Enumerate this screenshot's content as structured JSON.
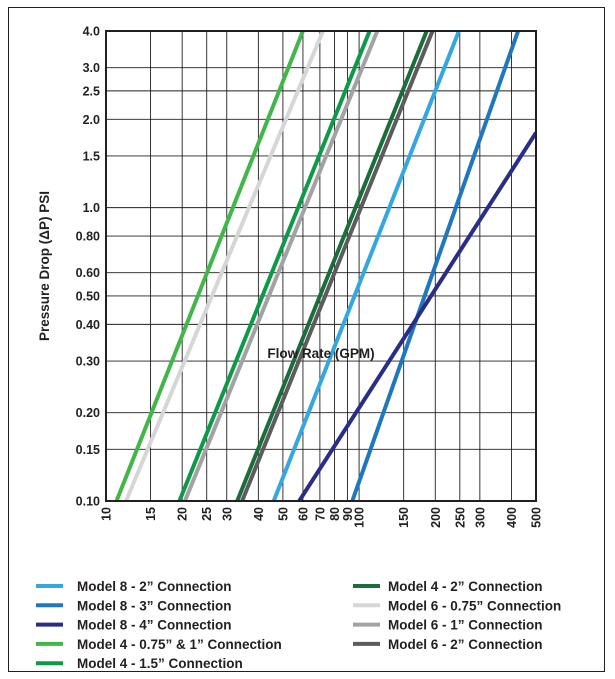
{
  "chart_data": {
    "type": "line",
    "xlabel": "Flow Rate (GPM)",
    "ylabel": "Pressure Drop (ΔP) PSI",
    "x_scale": "log",
    "y_scale": "log",
    "xlim": [
      10,
      500
    ],
    "ylim": [
      0.1,
      4.0
    ],
    "x_ticks": [
      10,
      15,
      20,
      25,
      30,
      40,
      50,
      60,
      70,
      80,
      90,
      100,
      150,
      200,
      250,
      300,
      400,
      500
    ],
    "x_tick_labels": [
      "10",
      "15",
      "20",
      "25",
      "30",
      "40",
      "50",
      "60",
      "70",
      "80",
      "90",
      "100",
      "150",
      "200",
      "250",
      "300",
      "400",
      "500"
    ],
    "y_ticks": [
      0.1,
      0.15,
      0.2,
      0.3,
      0.4,
      0.5,
      0.6,
      0.8,
      1.0,
      1.5,
      2.0,
      2.5,
      3.0,
      4.0
    ],
    "y_tick_labels": [
      "0.10",
      "0.15",
      "0.20",
      "0.30",
      "0.40",
      "0.50",
      "0.60",
      "0.80",
      "1.0",
      "1.5",
      "2.0",
      "2.5",
      "3.0",
      "4.0"
    ],
    "grid": true,
    "legend_position": "bottom",
    "series": [
      {
        "name": "Model 8 - 2” Connection",
        "color": "#35a7e0",
        "x": [
          46,
          248
        ],
        "y": [
          0.1,
          4.0
        ]
      },
      {
        "name": "Model 8 - 3” Connection",
        "color": "#1f78be",
        "x": [
          94,
          425
        ],
        "y": [
          0.1,
          4.0
        ]
      },
      {
        "name": "Model 8 - 4” Connection",
        "color": "#2a2d86",
        "x": [
          58,
          500
        ],
        "y": [
          0.1,
          1.8
        ]
      },
      {
        "name": "Model 4 - 0.75” & 1” Connection",
        "color": "#43b649",
        "x": [
          11,
          60
        ],
        "y": [
          0.1,
          4.0
        ]
      },
      {
        "name": "Model 4 - 1.5” Connection",
        "color": "#0d9a48",
        "x": [
          19.5,
          110
        ],
        "y": [
          0.1,
          4.0
        ]
      },
      {
        "name": "Model 4 - 2” Connection",
        "color": "#1b6e3c",
        "x": [
          33,
          185
        ],
        "y": [
          0.1,
          4.0
        ]
      },
      {
        "name": "Model 6 - 0.75” Connection",
        "color": "#d6d6d6",
        "x": [
          12,
          72
        ],
        "y": [
          0.1,
          4.0
        ]
      },
      {
        "name": "Model 6 - 1” Connection",
        "color": "#a2a2a2",
        "x": [
          20.5,
          118
        ],
        "y": [
          0.1,
          4.0
        ]
      },
      {
        "name": "Model 6 - 2” Connection",
        "color": "#5c5c5c",
        "x": [
          34.5,
          195
        ],
        "y": [
          0.1,
          4.0
        ]
      }
    ]
  },
  "legend": {
    "left": [
      {
        "label": "Model 8 - 2” Connection",
        "color": "#35a7e0"
      },
      {
        "label": "Model 8 - 3” Connection",
        "color": "#1f78be"
      },
      {
        "label": "Model 8 - 4” Connection",
        "color": "#2a2d86"
      },
      {
        "label": "Model 4 - 0.75” & 1” Connection",
        "color": "#43b649"
      },
      {
        "label": "Model 4 - 1.5” Connection",
        "color": "#0d9a48"
      }
    ],
    "right": [
      {
        "label": "Model 4 - 2” Connection",
        "color": "#1b6e3c"
      },
      {
        "label": "Model 6 - 0.75” Connection",
        "color": "#d6d6d6"
      },
      {
        "label": "Model 6 - 1” Connection",
        "color": "#a2a2a2"
      },
      {
        "label": "Model 6 - 2” Connection",
        "color": "#5c5c5c"
      }
    ]
  }
}
